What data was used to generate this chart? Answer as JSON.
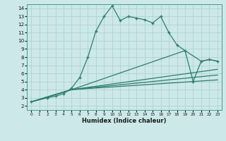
{
  "title": "",
  "xlabel": "Humidex (Indice chaleur)",
  "bg_color": "#cce8e8",
  "grid_color": "#aacfcf",
  "line_color": "#2e7d6e",
  "xlim": [
    -0.5,
    23.5
  ],
  "ylim": [
    1.5,
    14.5
  ],
  "xticks": [
    0,
    1,
    2,
    3,
    4,
    5,
    6,
    7,
    8,
    9,
    10,
    11,
    12,
    13,
    14,
    15,
    16,
    17,
    18,
    19,
    20,
    21,
    22,
    23
  ],
  "yticks": [
    2,
    3,
    4,
    5,
    6,
    7,
    8,
    9,
    10,
    11,
    12,
    13,
    14
  ],
  "line1_x": [
    0,
    2,
    3,
    4,
    5,
    6,
    7,
    8,
    9,
    10,
    11,
    12,
    13,
    14,
    15,
    16,
    17,
    18,
    19,
    20,
    21,
    22,
    23
  ],
  "line1_y": [
    2.5,
    3.0,
    3.2,
    3.5,
    4.2,
    5.5,
    8.0,
    11.2,
    13.0,
    14.3,
    12.5,
    13.0,
    12.8,
    12.6,
    12.2,
    13.0,
    11.0,
    9.5,
    8.8,
    5.0,
    7.5,
    7.7,
    7.5
  ],
  "line2_x": [
    0,
    5,
    19,
    21,
    22,
    23
  ],
  "line2_y": [
    2.5,
    4.0,
    8.8,
    7.5,
    7.7,
    7.5
  ],
  "line3_x": [
    0,
    5,
    23
  ],
  "line3_y": [
    2.5,
    4.0,
    6.5
  ],
  "line4_x": [
    0,
    5,
    23
  ],
  "line4_y": [
    2.5,
    4.0,
    5.8
  ],
  "line5_x": [
    0,
    5,
    23
  ],
  "line5_y": [
    2.5,
    4.0,
    5.2
  ]
}
